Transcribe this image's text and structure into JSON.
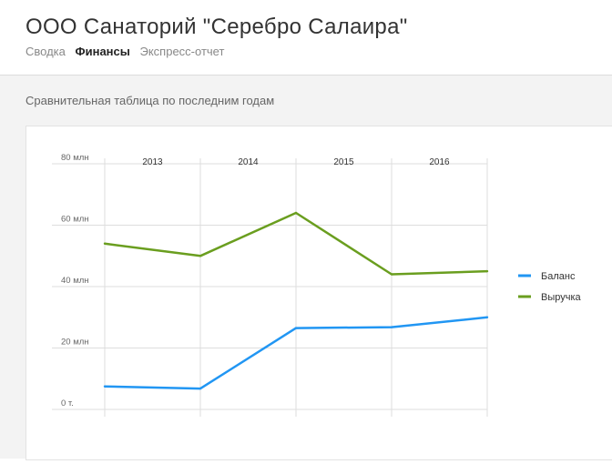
{
  "header": {
    "title": "ООО Санаторий \"Серебро Салаира\"",
    "tabs": [
      {
        "label": "Сводка",
        "active": false
      },
      {
        "label": "Финансы",
        "active": true
      },
      {
        "label": "Экспресс-отчет",
        "active": false
      }
    ]
  },
  "section": {
    "title": "Сравнительная таблица по последним годам"
  },
  "colors": {
    "balance": "#2196f3",
    "revenue": "#6a9e1f",
    "grid": "#dddddd",
    "axis_text": "#666666"
  },
  "chart_data": {
    "type": "line",
    "categories": [
      "2013",
      "2014",
      "2015",
      "2016"
    ],
    "y_ticks": [
      {
        "value": 0,
        "label": "0 т."
      },
      {
        "value": 20,
        "label": "20 млн"
      },
      {
        "value": 40,
        "label": "40 млн"
      },
      {
        "value": 60,
        "label": "60 млн"
      },
      {
        "value": 80,
        "label": "80 млн"
      }
    ],
    "ylim": [
      0,
      80
    ],
    "x": [
      2012.5,
      2013.5,
      2014.5,
      2015.5,
      2016.5
    ],
    "series": [
      {
        "name": "Баланс",
        "color": "#2196f3",
        "values": [
          7.5,
          6.8,
          26.5,
          26.8,
          30
        ]
      },
      {
        "name": "Выручка",
        "color": "#6a9e1f",
        "values": [
          54,
          50,
          64,
          44,
          45
        ]
      }
    ],
    "grid": true,
    "legend": "right"
  }
}
